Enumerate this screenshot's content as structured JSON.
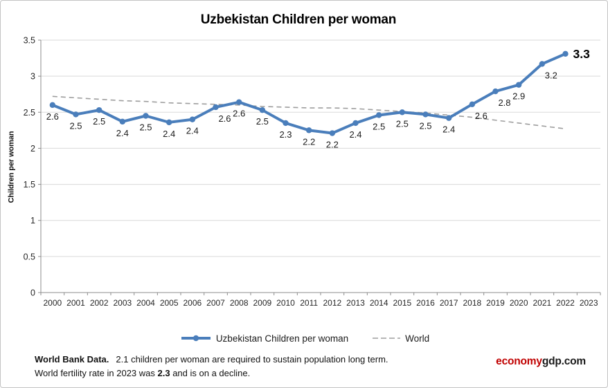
{
  "title": "Uzbekistan Children per woman",
  "y_axis": {
    "title": "Children per woman",
    "ticks": [
      "0",
      "0.5",
      "1",
      "1.5",
      "2",
      "2.5",
      "3",
      "3.5"
    ]
  },
  "x_axis": {
    "years": [
      "2000",
      "2001",
      "2002",
      "2003",
      "2004",
      "2005",
      "2006",
      "2007",
      "2008",
      "2009",
      "2010",
      "2011",
      "2012",
      "2013",
      "2014",
      "2015",
      "2016",
      "2017",
      "2018",
      "2019",
      "2020",
      "2021",
      "2022",
      "2023"
    ]
  },
  "legend": {
    "uzbekistan_label": "Uzbekistan Children per woman",
    "world_label": "World"
  },
  "footer": {
    "line1_bold": "World Bank Data.",
    "line1_rest": "2.1 children per woman are required to sustain population long term.",
    "line2_pre": "World fertility rate in 2023 was ",
    "line2_bold": "2.3",
    "line2_post": " and is on a decline."
  },
  "brand": {
    "red_part": "economy",
    "dark_part": "gdp.com"
  },
  "colors": {
    "uzbekistan_line": "#4a7ebb",
    "world_line": "#9d9d9d",
    "gridline": "#d9d9d9",
    "axis": "#8c8c8c",
    "tick_label": "#262626",
    "data_label": "#1a1a1a",
    "big_label": "#000000",
    "brand_red": "#c00000"
  },
  "chart_data": {
    "type": "line",
    "title": "Uzbekistan Children per woman",
    "xlabel": "",
    "ylabel": "Children per woman",
    "ylim": [
      0,
      3.5
    ],
    "ytick_step": 0.5,
    "grid": true,
    "legend_position": "bottom",
    "x": [
      2000,
      2001,
      2002,
      2003,
      2004,
      2005,
      2006,
      2007,
      2008,
      2009,
      2010,
      2011,
      2012,
      2013,
      2014,
      2015,
      2016,
      2017,
      2018,
      2019,
      2020,
      2021,
      2022,
      2023
    ],
    "series": [
      {
        "name": "Uzbekistan Children per woman",
        "style": "solid-with-markers",
        "color": "#4a7ebb",
        "values": [
          2.6,
          2.47,
          2.53,
          2.37,
          2.45,
          2.36,
          2.4,
          2.57,
          2.64,
          2.53,
          2.35,
          2.25,
          2.21,
          2.35,
          2.46,
          2.5,
          2.47,
          2.42,
          2.61,
          2.79,
          2.88,
          3.17,
          3.31,
          null
        ],
        "point_labels": [
          "2.6",
          "2.5",
          "2.5",
          "2.4",
          "2.5",
          "2.4",
          "2.4",
          "2.6",
          "2.6",
          "2.5",
          "2.3",
          "2.2",
          "2.2",
          "2.4",
          "2.5",
          "2.5",
          "2.5",
          "2.4",
          "2.6",
          "2.8",
          "2.9",
          "3.2",
          "3.3",
          null
        ]
      },
      {
        "name": "World",
        "style": "dashed",
        "color": "#9d9d9d",
        "values": [
          2.72,
          2.7,
          2.68,
          2.66,
          2.65,
          2.63,
          2.62,
          2.61,
          2.6,
          2.58,
          2.57,
          2.56,
          2.56,
          2.55,
          2.53,
          2.51,
          2.49,
          2.46,
          2.43,
          2.39,
          2.35,
          2.31,
          2.27,
          null
        ]
      }
    ],
    "highlight_last_label": "3.3"
  }
}
